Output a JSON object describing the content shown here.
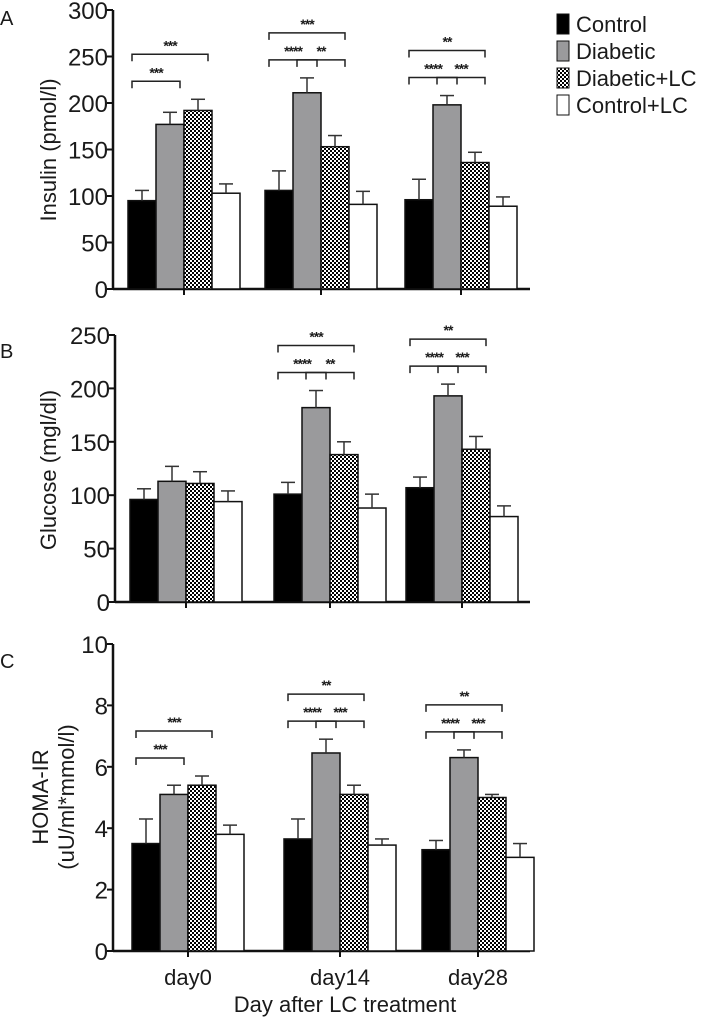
{
  "legend": [
    {
      "label": "Control",
      "fill": "#000000"
    },
    {
      "label": "Diabetic",
      "fill": "#9a9a9c"
    },
    {
      "label": "Diabetic+LC",
      "fill": "checker"
    },
    {
      "label": "Control+LC",
      "fill": "#ffffff"
    }
  ],
  "x_title": "Day after LC treatment",
  "chart_data": [
    {
      "type": "bar",
      "panel": "A",
      "ylabel": "Insulin (pmol/l)",
      "ylim": [
        0,
        300
      ],
      "yticks": [
        0,
        50,
        100,
        150,
        200,
        250,
        300
      ],
      "categories": [
        "day0",
        "day14",
        "day28"
      ],
      "series": [
        {
          "name": "Control",
          "values": [
            95,
            106,
            96
          ],
          "error_upper": [
            106,
            127,
            118
          ]
        },
        {
          "name": "Diabetic",
          "values": [
            177,
            211,
            198
          ],
          "error_upper": [
            190,
            227,
            208
          ]
        },
        {
          "name": "Diabetic+LC",
          "values": [
            192,
            153,
            136
          ],
          "error_upper": [
            204,
            165,
            147
          ]
        },
        {
          "name": "Control+LC",
          "values": [
            103,
            91,
            89
          ],
          "error_upper": [
            113,
            105,
            99
          ]
        }
      ],
      "significance": [
        {
          "group": "day0",
          "from": 0,
          "to": 1,
          "label": "***",
          "level": 1
        },
        {
          "group": "day0",
          "from": 0,
          "to": 2,
          "label": "***",
          "level": 2
        },
        {
          "group": "day14",
          "from": 0,
          "to": 1,
          "label": "****",
          "level": 1
        },
        {
          "group": "day14",
          "from": 1,
          "to": 2,
          "label": "**",
          "level": 1
        },
        {
          "group": "day14",
          "from": 0,
          "to": 2,
          "label": "***",
          "level": 2
        },
        {
          "group": "day28",
          "from": 0,
          "to": 1,
          "label": "****",
          "level": 1
        },
        {
          "group": "day28",
          "from": 1,
          "to": 2,
          "label": "***",
          "level": 1
        },
        {
          "group": "day28",
          "from": 0,
          "to": 2,
          "label": "**",
          "level": 2
        }
      ]
    },
    {
      "type": "bar",
      "panel": "B",
      "ylabel": "Glucose (mgl/dl)",
      "ylim": [
        0,
        250
      ],
      "yticks": [
        0,
        50,
        100,
        150,
        200,
        250
      ],
      "categories": [
        "day0",
        "day14",
        "day28"
      ],
      "series": [
        {
          "name": "Control",
          "values": [
            96,
            101,
            107
          ],
          "error_upper": [
            106,
            112,
            117
          ]
        },
        {
          "name": "Diabetic",
          "values": [
            113,
            182,
            193
          ],
          "error_upper": [
            127,
            198,
            204
          ]
        },
        {
          "name": "Diabetic+LC",
          "values": [
            111,
            138,
            143
          ],
          "error_upper": [
            122,
            150,
            155
          ]
        },
        {
          "name": "Control+LC",
          "values": [
            94,
            88,
            80
          ],
          "error_upper": [
            104,
            101,
            90
          ]
        }
      ],
      "significance": [
        {
          "group": "day14",
          "from": 0,
          "to": 1,
          "label": "****",
          "level": 1
        },
        {
          "group": "day14",
          "from": 1,
          "to": 2,
          "label": "**",
          "level": 1
        },
        {
          "group": "day14",
          "from": 0,
          "to": 2,
          "label": "***",
          "level": 2
        },
        {
          "group": "day28",
          "from": 0,
          "to": 1,
          "label": "****",
          "level": 1
        },
        {
          "group": "day28",
          "from": 1,
          "to": 2,
          "label": "***",
          "level": 1
        },
        {
          "group": "day28",
          "from": 0,
          "to": 2,
          "label": "**",
          "level": 2
        }
      ]
    },
    {
      "type": "bar",
      "panel": "C",
      "ylabel": "HOMA-IR",
      "ylabel2": "(uU/ml*mmol/l)",
      "ylim": [
        0,
        10
      ],
      "yticks": [
        0,
        2,
        4,
        6,
        8,
        10
      ],
      "categories": [
        "day0",
        "day14",
        "day28"
      ],
      "series": [
        {
          "name": "Control",
          "values": [
            3.5,
            3.65,
            3.3
          ],
          "error_upper": [
            4.3,
            4.3,
            3.6
          ]
        },
        {
          "name": "Diabetic",
          "values": [
            5.1,
            6.45,
            6.3
          ],
          "error_upper": [
            5.4,
            6.9,
            6.55
          ]
        },
        {
          "name": "Diabetic+LC",
          "values": [
            5.4,
            5.1,
            5.0
          ],
          "error_upper": [
            5.7,
            5.4,
            5.1
          ]
        },
        {
          "name": "Control+LC",
          "values": [
            3.8,
            3.45,
            3.05
          ],
          "error_upper": [
            4.1,
            3.65,
            3.5
          ]
        }
      ],
      "significance": [
        {
          "group": "day0",
          "from": 0,
          "to": 1,
          "label": "***",
          "level": 1
        },
        {
          "group": "day0",
          "from": 0,
          "to": 2,
          "label": "***",
          "level": 2
        },
        {
          "group": "day14",
          "from": 0,
          "to": 1,
          "label": "****",
          "level": 1
        },
        {
          "group": "day14",
          "from": 1,
          "to": 2,
          "label": "***",
          "level": 1
        },
        {
          "group": "day14",
          "from": 0,
          "to": 2,
          "label": "**",
          "level": 2
        },
        {
          "group": "day28",
          "from": 0,
          "to": 1,
          "label": "****",
          "level": 1
        },
        {
          "group": "day28",
          "from": 1,
          "to": 2,
          "label": "***",
          "level": 1
        },
        {
          "group": "day28",
          "from": 0,
          "to": 2,
          "label": "**",
          "level": 2
        }
      ]
    }
  ]
}
